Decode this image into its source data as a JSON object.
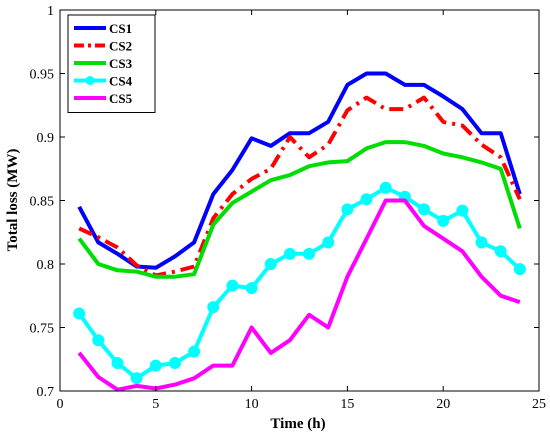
{
  "chart_data": {
    "type": "line",
    "xlabel": "Time (h)",
    "ylabel": "Total loss (MW)",
    "xlim": [
      0,
      25
    ],
    "ylim": [
      0.7,
      1
    ],
    "x_ticks": [
      0,
      5,
      10,
      15,
      20,
      25
    ],
    "y_ticks": [
      0.7,
      0.75,
      0.8,
      0.85,
      0.9,
      0.95,
      1
    ],
    "x_tick_labels": [
      "0",
      "5",
      "10",
      "15",
      "20",
      "25"
    ],
    "y_tick_labels": [
      "0.7",
      "0.75",
      "0.8",
      "0.85",
      "0.9",
      "0.95",
      "1"
    ],
    "grid": false,
    "legend_position": "top-left",
    "x": [
      1,
      2,
      3,
      4,
      5,
      6,
      7,
      8,
      9,
      10,
      11,
      12,
      13,
      14,
      15,
      16,
      17,
      18,
      19,
      20,
      21,
      22,
      23,
      24
    ],
    "series": [
      {
        "name": "CS1",
        "color": "#0000ff",
        "style": "solid",
        "marker": "none",
        "values": [
          0.845,
          0.817,
          0.808,
          0.798,
          0.797,
          0.806,
          0.817,
          0.855,
          0.874,
          0.899,
          0.893,
          0.903,
          0.903,
          0.912,
          0.941,
          0.95,
          0.95,
          0.941,
          0.941,
          0.932,
          0.922,
          0.903,
          0.903,
          0.855
        ]
      },
      {
        "name": "CS2",
        "color": "#ff0000",
        "style": "dashdot",
        "marker": "none",
        "values": [
          0.828,
          0.821,
          0.813,
          0.799,
          0.791,
          0.794,
          0.798,
          0.836,
          0.855,
          0.867,
          0.875,
          0.9,
          0.884,
          0.894,
          0.921,
          0.931,
          0.922,
          0.922,
          0.931,
          0.912,
          0.909,
          0.894,
          0.884,
          0.851
        ]
      },
      {
        "name": "CS3",
        "color": "#00dd00",
        "style": "solid",
        "marker": "none",
        "values": [
          0.82,
          0.8,
          0.795,
          0.794,
          0.79,
          0.79,
          0.792,
          0.831,
          0.848,
          0.857,
          0.866,
          0.87,
          0.877,
          0.88,
          0.881,
          0.891,
          0.896,
          0.896,
          0.893,
          0.887,
          0.884,
          0.88,
          0.875,
          0.828
        ]
      },
      {
        "name": "CS4",
        "color": "#00ffff",
        "style": "solid",
        "marker": "star",
        "values": [
          0.761,
          0.74,
          0.722,
          0.71,
          0.72,
          0.722,
          0.731,
          0.766,
          0.783,
          0.781,
          0.8,
          0.808,
          0.808,
          0.817,
          0.843,
          0.851,
          0.86,
          0.853,
          0.843,
          0.834,
          0.842,
          0.817,
          0.81,
          0.796
        ]
      },
      {
        "name": "CS5",
        "color": "#ff00ff",
        "style": "solid",
        "marker": "none",
        "values": [
          0.73,
          0.711,
          0.701,
          0.704,
          0.702,
          0.705,
          0.71,
          0.72,
          0.72,
          0.75,
          0.73,
          0.74,
          0.76,
          0.75,
          0.79,
          0.82,
          0.85,
          0.85,
          0.83,
          0.82,
          0.81,
          0.79,
          0.775,
          0.77
        ]
      }
    ]
  }
}
